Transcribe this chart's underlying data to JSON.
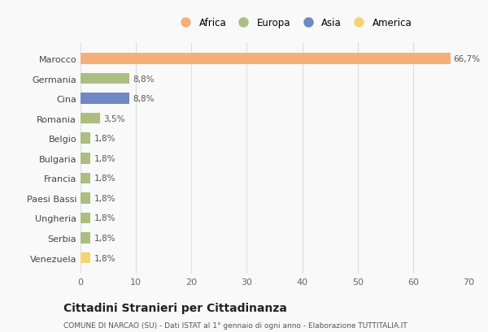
{
  "categories": [
    "Marocco",
    "Germania",
    "Cina",
    "Romania",
    "Belgio",
    "Bulgaria",
    "Francia",
    "Paesi Bassi",
    "Ungheria",
    "Serbia",
    "Venezuela"
  ],
  "values": [
    66.7,
    8.8,
    8.8,
    3.5,
    1.8,
    1.8,
    1.8,
    1.8,
    1.8,
    1.8,
    1.8
  ],
  "labels": [
    "66,7%",
    "8,8%",
    "8,8%",
    "3,5%",
    "1,8%",
    "1,8%",
    "1,8%",
    "1,8%",
    "1,8%",
    "1,8%",
    "1,8%"
  ],
  "colors": [
    "#F5B07A",
    "#ABBE80",
    "#6F87C3",
    "#ABBE80",
    "#ABBE80",
    "#ABBE80",
    "#ABBE80",
    "#ABBE80",
    "#ABBE80",
    "#ABBE80",
    "#F5D470"
  ],
  "legend_labels": [
    "Africa",
    "Europa",
    "Asia",
    "America"
  ],
  "legend_colors": [
    "#F5B07A",
    "#ABBE80",
    "#6F87C3",
    "#F5D470"
  ],
  "title": "Cittadini Stranieri per Cittadinanza",
  "subtitle": "COMUNE DI NARCAO (SU) - Dati ISTAT al 1° gennaio di ogni anno - Elaborazione TUTTITALIA.IT",
  "xlim": [
    0,
    70
  ],
  "xticks": [
    0,
    10,
    20,
    30,
    40,
    50,
    60,
    70
  ],
  "background_color": "#f9f9f9",
  "bar_height": 0.55
}
